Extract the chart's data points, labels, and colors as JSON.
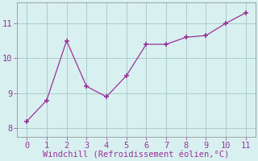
{
  "x": [
    0,
    1,
    2,
    3,
    4,
    5,
    6,
    7,
    8,
    9,
    10,
    11
  ],
  "y": [
    8.2,
    8.8,
    10.5,
    9.2,
    8.9,
    9.5,
    10.4,
    10.4,
    10.6,
    10.65,
    11.0,
    11.3
  ],
  "line_color": "#993399",
  "marker": "+",
  "xlabel": "Windchill (Refroidissement éolien,°C)",
  "xlabel_color": "#993399",
  "background_color": "#d8f0f0",
  "grid_color": "#aacccc",
  "tick_color": "#993399",
  "spine_color": "#888888",
  "xlim": [
    -0.5,
    11.5
  ],
  "ylim": [
    7.75,
    11.6
  ],
  "xticks": [
    0,
    1,
    2,
    3,
    4,
    5,
    6,
    7,
    8,
    9,
    10,
    11
  ],
  "yticks": [
    8,
    9,
    10,
    11
  ],
  "font_size": 7.5,
  "xlabel_font_size": 7.5
}
